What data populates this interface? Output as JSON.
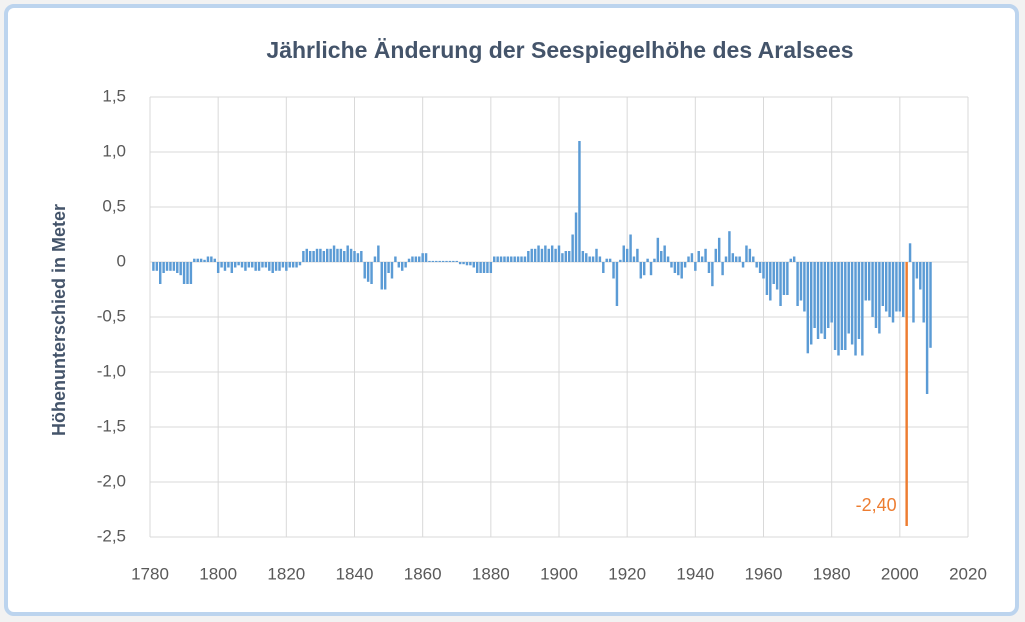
{
  "chart_data": {
    "type": "bar",
    "title": "Jährliche Änderung der Seespiegelhöhe des Aralsees",
    "y_label": "Höhenunterschied in Meter",
    "xlim": [
      1780,
      2020
    ],
    "xticks": [
      1780,
      1800,
      1820,
      1840,
      1860,
      1880,
      1900,
      1920,
      1940,
      1960,
      1980,
      2000,
      2020
    ],
    "ylim": [
      -2.5,
      1.5
    ],
    "yticks": [
      {
        "value": -2.5,
        "label": "-2,5"
      },
      {
        "value": -2.0,
        "label": "-2,0"
      },
      {
        "value": -1.5,
        "label": "-1,5"
      },
      {
        "value": -1.0,
        "label": "-1,0"
      },
      {
        "value": -0.5,
        "label": "-0,5"
      },
      0,
      {
        "value": 0.5,
        "label": "0,5"
      },
      {
        "value": 1.0,
        "label": "1,0"
      },
      {
        "value": 1.5,
        "label": "1,5"
      }
    ],
    "grid": true,
    "highlight_color": "#ed7d31",
    "x": [
      1781,
      1782,
      1783,
      1784,
      1785,
      1786,
      1787,
      1788,
      1789,
      1790,
      1791,
      1792,
      1793,
      1794,
      1795,
      1796,
      1797,
      1798,
      1799,
      1800,
      1801,
      1802,
      1803,
      1804,
      1805,
      1806,
      1807,
      1808,
      1809,
      1810,
      1811,
      1812,
      1813,
      1814,
      1815,
      1816,
      1817,
      1818,
      1819,
      1820,
      1821,
      1822,
      1823,
      1824,
      1825,
      1826,
      1827,
      1828,
      1829,
      1830,
      1831,
      1832,
      1833,
      1834,
      1835,
      1836,
      1837,
      1838,
      1839,
      1840,
      1841,
      1842,
      1843,
      1844,
      1845,
      1846,
      1847,
      1848,
      1849,
      1850,
      1851,
      1852,
      1853,
      1854,
      1855,
      1856,
      1857,
      1858,
      1859,
      1860,
      1861,
      1862,
      1863,
      1864,
      1865,
      1866,
      1867,
      1868,
      1869,
      1870,
      1871,
      1872,
      1873,
      1874,
      1875,
      1876,
      1877,
      1878,
      1879,
      1880,
      1881,
      1882,
      1883,
      1884,
      1885,
      1886,
      1887,
      1888,
      1889,
      1890,
      1891,
      1892,
      1893,
      1894,
      1895,
      1896,
      1897,
      1898,
      1899,
      1900,
      1901,
      1902,
      1903,
      1904,
      1905,
      1906,
      1907,
      1908,
      1909,
      1910,
      1911,
      1912,
      1913,
      1914,
      1915,
      1916,
      1917,
      1918,
      1919,
      1920,
      1921,
      1922,
      1923,
      1924,
      1925,
      1926,
      1927,
      1928,
      1929,
      1930,
      1931,
      1932,
      1933,
      1934,
      1935,
      1936,
      1937,
      1938,
      1939,
      1940,
      1941,
      1942,
      1943,
      1944,
      1945,
      1946,
      1947,
      1948,
      1949,
      1950,
      1951,
      1952,
      1953,
      1954,
      1955,
      1956,
      1957,
      1958,
      1959,
      1960,
      1961,
      1962,
      1963,
      1964,
      1965,
      1966,
      1967,
      1968,
      1969,
      1970,
      1971,
      1972,
      1973,
      1974,
      1975,
      1976,
      1977,
      1978,
      1979,
      1980,
      1981,
      1982,
      1983,
      1984,
      1985,
      1986,
      1987,
      1988,
      1989,
      1990,
      1991,
      1992,
      1993,
      1994,
      1995,
      1996,
      1997,
      1998,
      1999,
      2000,
      2001,
      2002,
      2003,
      2004,
      2005,
      2006,
      2007,
      2008,
      2009
    ],
    "series": [
      {
        "color": "#5b9bd5",
        "values": [
          -0.08,
          -0.08,
          -0.2,
          -0.1,
          -0.08,
          -0.08,
          -0.08,
          -0.1,
          -0.12,
          -0.2,
          -0.2,
          -0.2,
          0.03,
          0.03,
          0.03,
          0.02,
          0.05,
          0.05,
          0.03,
          -0.1,
          -0.05,
          -0.08,
          -0.05,
          -0.1,
          -0.05,
          -0.03,
          -0.05,
          -0.08,
          -0.05,
          -0.05,
          -0.08,
          -0.08,
          -0.05,
          -0.05,
          -0.08,
          -0.1,
          -0.08,
          -0.08,
          -0.05,
          -0.08,
          -0.05,
          -0.05,
          -0.05,
          -0.03,
          0.1,
          0.12,
          0.1,
          0.1,
          0.12,
          0.12,
          0.1,
          0.12,
          0.12,
          0.15,
          0.12,
          0.12,
          0.1,
          0.15,
          0.12,
          0.1,
          0.08,
          0.1,
          -0.15,
          -0.18,
          -0.2,
          0.05,
          0.15,
          -0.25,
          -0.25,
          -0.1,
          -0.15,
          0.05,
          -0.05,
          -0.08,
          -0.05,
          0.03,
          0.05,
          0.05,
          0.05,
          0.08,
          0.08,
          0.01,
          0.01,
          0.01,
          0.01,
          0.01,
          0.01,
          0.01,
          0.01,
          0.01,
          -0.02,
          -0.02,
          -0.03,
          -0.03,
          -0.05,
          -0.1,
          -0.1,
          -0.1,
          -0.1,
          -0.1,
          0.05,
          0.05,
          0.05,
          0.05,
          0.05,
          0.05,
          0.05,
          0.05,
          0.05,
          0.05,
          0.1,
          0.12,
          0.12,
          0.15,
          0.12,
          0.15,
          0.12,
          0.15,
          0.12,
          0.15,
          0.08,
          0.1,
          0.1,
          0.25,
          0.45,
          1.1,
          0.1,
          0.08,
          0.05,
          0.05,
          0.12,
          0.05,
          -0.1,
          0.03,
          0.03,
          -0.15,
          -0.4,
          0.02,
          0.15,
          0.12,
          0.25,
          0.05,
          0.12,
          -0.15,
          -0.12,
          0.03,
          -0.12,
          0.03,
          0.22,
          0.1,
          0.15,
          0.05,
          -0.05,
          -0.1,
          -0.12,
          -0.15,
          -0.05,
          0.05,
          0.08,
          -0.08,
          0.1,
          0.05,
          0.12,
          -0.1,
          -0.22,
          0.12,
          0.22,
          -0.12,
          0.05,
          0.28,
          0.08,
          0.05,
          0.05,
          -0.05,
          0.15,
          0.12,
          0.05,
          -0.05,
          -0.1,
          -0.15,
          -0.3,
          -0.35,
          -0.2,
          -0.25,
          -0.4,
          -0.3,
          -0.3,
          0.03,
          0.05,
          -0.4,
          -0.35,
          -0.45,
          -0.83,
          -0.75,
          -0.6,
          -0.7,
          -0.65,
          -0.7,
          -0.6,
          -0.55,
          -0.8,
          -0.85,
          -0.8,
          -0.8,
          -0.65,
          -0.75,
          -0.85,
          -0.7,
          -0.85,
          -0.35,
          -0.35,
          -0.5,
          -0.6,
          -0.65,
          -0.4,
          -0.45,
          -0.5,
          -0.55,
          -0.45,
          -0.45,
          -0.5,
          -2.4,
          0.17,
          -0.55,
          -0.15,
          -0.25,
          -0.55,
          -1.2,
          -0.78
        ],
        "value_labels": [
          null,
          null,
          null,
          null,
          null,
          null,
          null,
          null,
          null,
          null,
          null,
          null,
          null,
          null,
          null,
          null,
          null,
          null,
          null,
          null,
          null,
          null,
          null,
          null,
          null,
          null,
          null,
          null,
          null,
          null,
          null,
          null,
          null,
          null,
          null,
          null,
          null,
          null,
          null,
          null,
          null,
          null,
          null,
          null,
          null,
          null,
          null,
          null,
          null,
          null,
          null,
          null,
          null,
          null,
          null,
          null,
          null,
          null,
          null,
          null,
          null,
          null,
          null,
          null,
          null,
          null,
          null,
          null,
          null,
          null,
          null,
          null,
          null,
          null,
          null,
          null,
          null,
          null,
          null,
          null,
          null,
          null,
          null,
          null,
          null,
          null,
          null,
          null,
          null,
          null,
          null,
          null,
          null,
          null,
          null,
          null,
          null,
          null,
          null,
          null,
          null,
          null,
          null,
          null,
          null,
          null,
          null,
          null,
          null,
          null,
          null,
          null,
          null,
          null,
          null,
          null,
          null,
          null,
          null,
          null,
          null,
          null,
          null,
          null,
          null,
          null,
          null,
          null,
          null,
          null,
          null,
          null,
          null,
          null,
          null,
          null,
          null,
          null,
          null,
          null,
          null,
          null,
          null,
          null,
          null,
          null,
          null,
          null,
          null,
          null,
          null,
          null,
          null,
          null,
          null,
          null,
          null,
          null,
          null,
          null,
          null,
          null,
          null,
          null,
          null,
          null,
          null,
          null,
          null,
          null,
          null,
          null,
          null,
          null,
          null,
          null,
          null,
          null,
          null,
          null,
          null,
          null,
          null,
          null,
          null,
          null,
          null,
          null,
          null,
          null,
          null,
          null,
          null,
          null,
          null,
          null,
          null,
          null,
          null,
          null,
          null,
          null,
          null,
          null,
          null,
          null,
          null,
          null,
          null,
          null,
          null,
          null,
          null,
          null,
          null,
          null,
          null,
          null,
          null,
          null,
          null,
          "-2,40",
          null,
          null,
          null,
          null,
          null,
          null,
          null
        ]
      }
    ]
  }
}
